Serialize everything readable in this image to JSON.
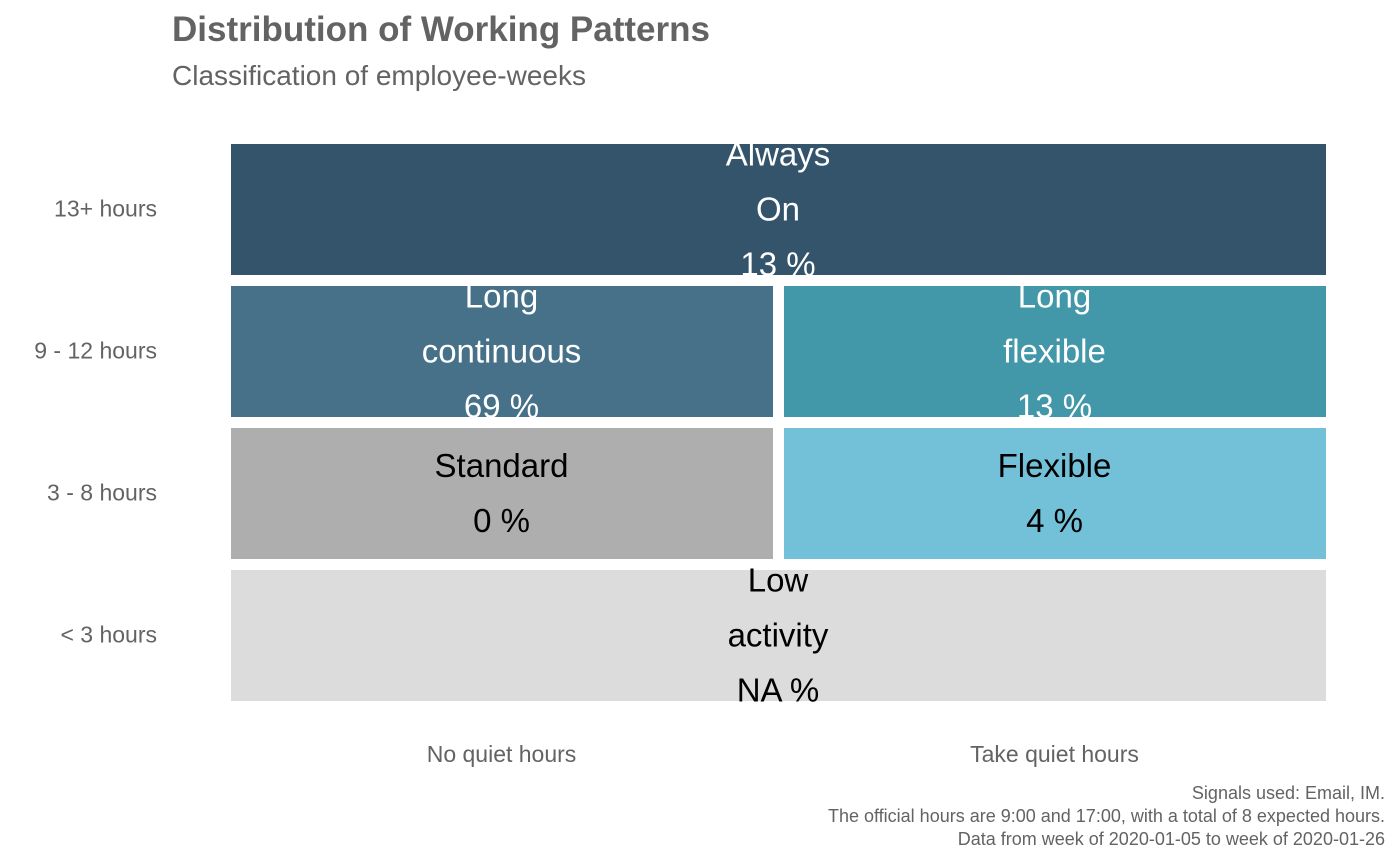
{
  "chart_data": {
    "type": "heatmap",
    "title": "Distribution of Working Patterns",
    "subtitle": "Classification of employee-weeks",
    "x_categories": [
      "No quiet hours",
      "Take quiet hours"
    ],
    "y_categories": [
      "13+ hours",
      "9 - 12 hours",
      "3 - 8 hours",
      "< 3 hours"
    ],
    "tiles": [
      {
        "row": "13+ hours",
        "columns": [
          "No quiet hours",
          "Take quiet hours"
        ],
        "lines": [
          "Always",
          "On"
        ],
        "percent": "13 %",
        "value": 13,
        "color": "#34546b",
        "text_color": "#ffffff"
      },
      {
        "row": "9 - 12 hours",
        "columns": [
          "No quiet hours"
        ],
        "lines": [
          "Long",
          "continuous"
        ],
        "percent": "69 %",
        "value": 69,
        "color": "#467189",
        "text_color": "#ffffff"
      },
      {
        "row": "9 - 12 hours",
        "columns": [
          "Take quiet hours"
        ],
        "lines": [
          "Long",
          "flexible"
        ],
        "percent": "13 %",
        "value": 13,
        "color": "#4297a8",
        "text_color": "#ffffff"
      },
      {
        "row": "3 - 8 hours",
        "columns": [
          "No quiet hours"
        ],
        "lines": [
          "Standard"
        ],
        "percent": "0 %",
        "value": 0,
        "color": "#aeaeae",
        "text_color": "#000000"
      },
      {
        "row": "3 - 8 hours",
        "columns": [
          "Take quiet hours"
        ],
        "lines": [
          "Flexible"
        ],
        "percent": "4 %",
        "value": 4,
        "color": "#72c1d8",
        "text_color": "#000000"
      },
      {
        "row": "< 3 hours",
        "columns": [
          "No quiet hours",
          "Take quiet hours"
        ],
        "lines": [
          "Low",
          "activity"
        ],
        "percent": "NA %",
        "value": null,
        "color": "#dcdcdc",
        "text_color": "#000000"
      }
    ],
    "caption": [
      "Signals used: Email, IM.",
      "The official hours are 9:00 and 17:00, with a total of 8 expected hours.",
      "Data from week of 2020-01-05 to week of 2020-01-26"
    ],
    "legend": "none",
    "grid": false
  }
}
